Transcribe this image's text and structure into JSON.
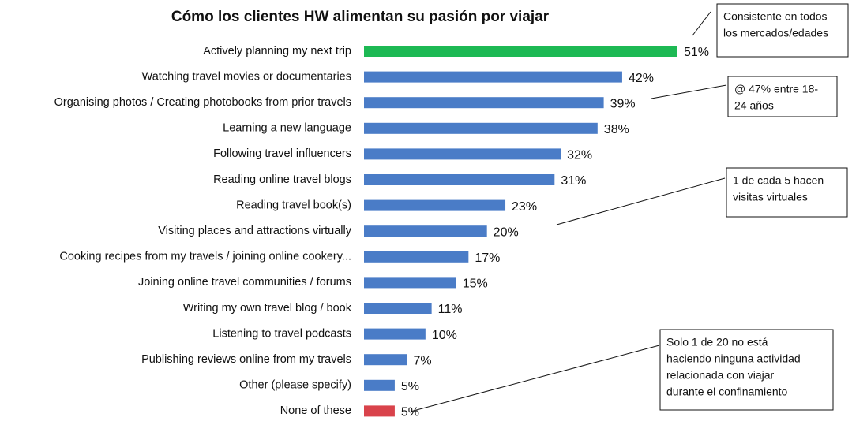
{
  "chart_data": {
    "type": "bar",
    "orientation": "horizontal",
    "title": "Cómo los clientes HW alimentan su pasión por viajar",
    "categories": [
      "Actively planning my next trip",
      "Watching travel movies or documentaries",
      "Organising photos / Creating photobooks from prior travels",
      "Learning a new language",
      "Following travel influencers",
      "Reading online travel blogs",
      "Reading travel book(s)",
      "Visiting places and attractions virtually",
      "Cooking recipes from my travels / joining online cookery...",
      "Joining online travel communities / forums",
      "Writing my own travel blog / book",
      "Listening to travel podcasts",
      "Publishing reviews online from my travels",
      "Other (please specify)",
      "None of these"
    ],
    "values": [
      51,
      42,
      39,
      38,
      32,
      31,
      23,
      20,
      17,
      15,
      11,
      10,
      7,
      5,
      5
    ],
    "value_labels": [
      "51%",
      "42%",
      "39%",
      "38%",
      "32%",
      "31%",
      "23%",
      "20%",
      "17%",
      "15%",
      "11%",
      "10%",
      "7%",
      "5%",
      "5%"
    ],
    "colors": [
      "#1db954",
      "#4a7cc7",
      "#4a7cc7",
      "#4a7cc7",
      "#4a7cc7",
      "#4a7cc7",
      "#4a7cc7",
      "#4a7cc7",
      "#4a7cc7",
      "#4a7cc7",
      "#4a7cc7",
      "#4a7cc7",
      "#4a7cc7",
      "#4a7cc7",
      "#d9434b"
    ],
    "annotations": [
      {
        "lines": [
          "Consistente en todos",
          "los mercados/edades"
        ]
      },
      {
        "lines": [
          "@ 47% entre 18-",
          "24 años"
        ]
      },
      {
        "lines": [
          "1 de cada 5 hacen",
          "visitas virtuales"
        ]
      },
      {
        "lines": [
          "Solo 1 de 20 no está",
          "haciendo ninguna actividad",
          "relacionada con viajar",
          "durante el confinamiento"
        ]
      }
    ]
  }
}
